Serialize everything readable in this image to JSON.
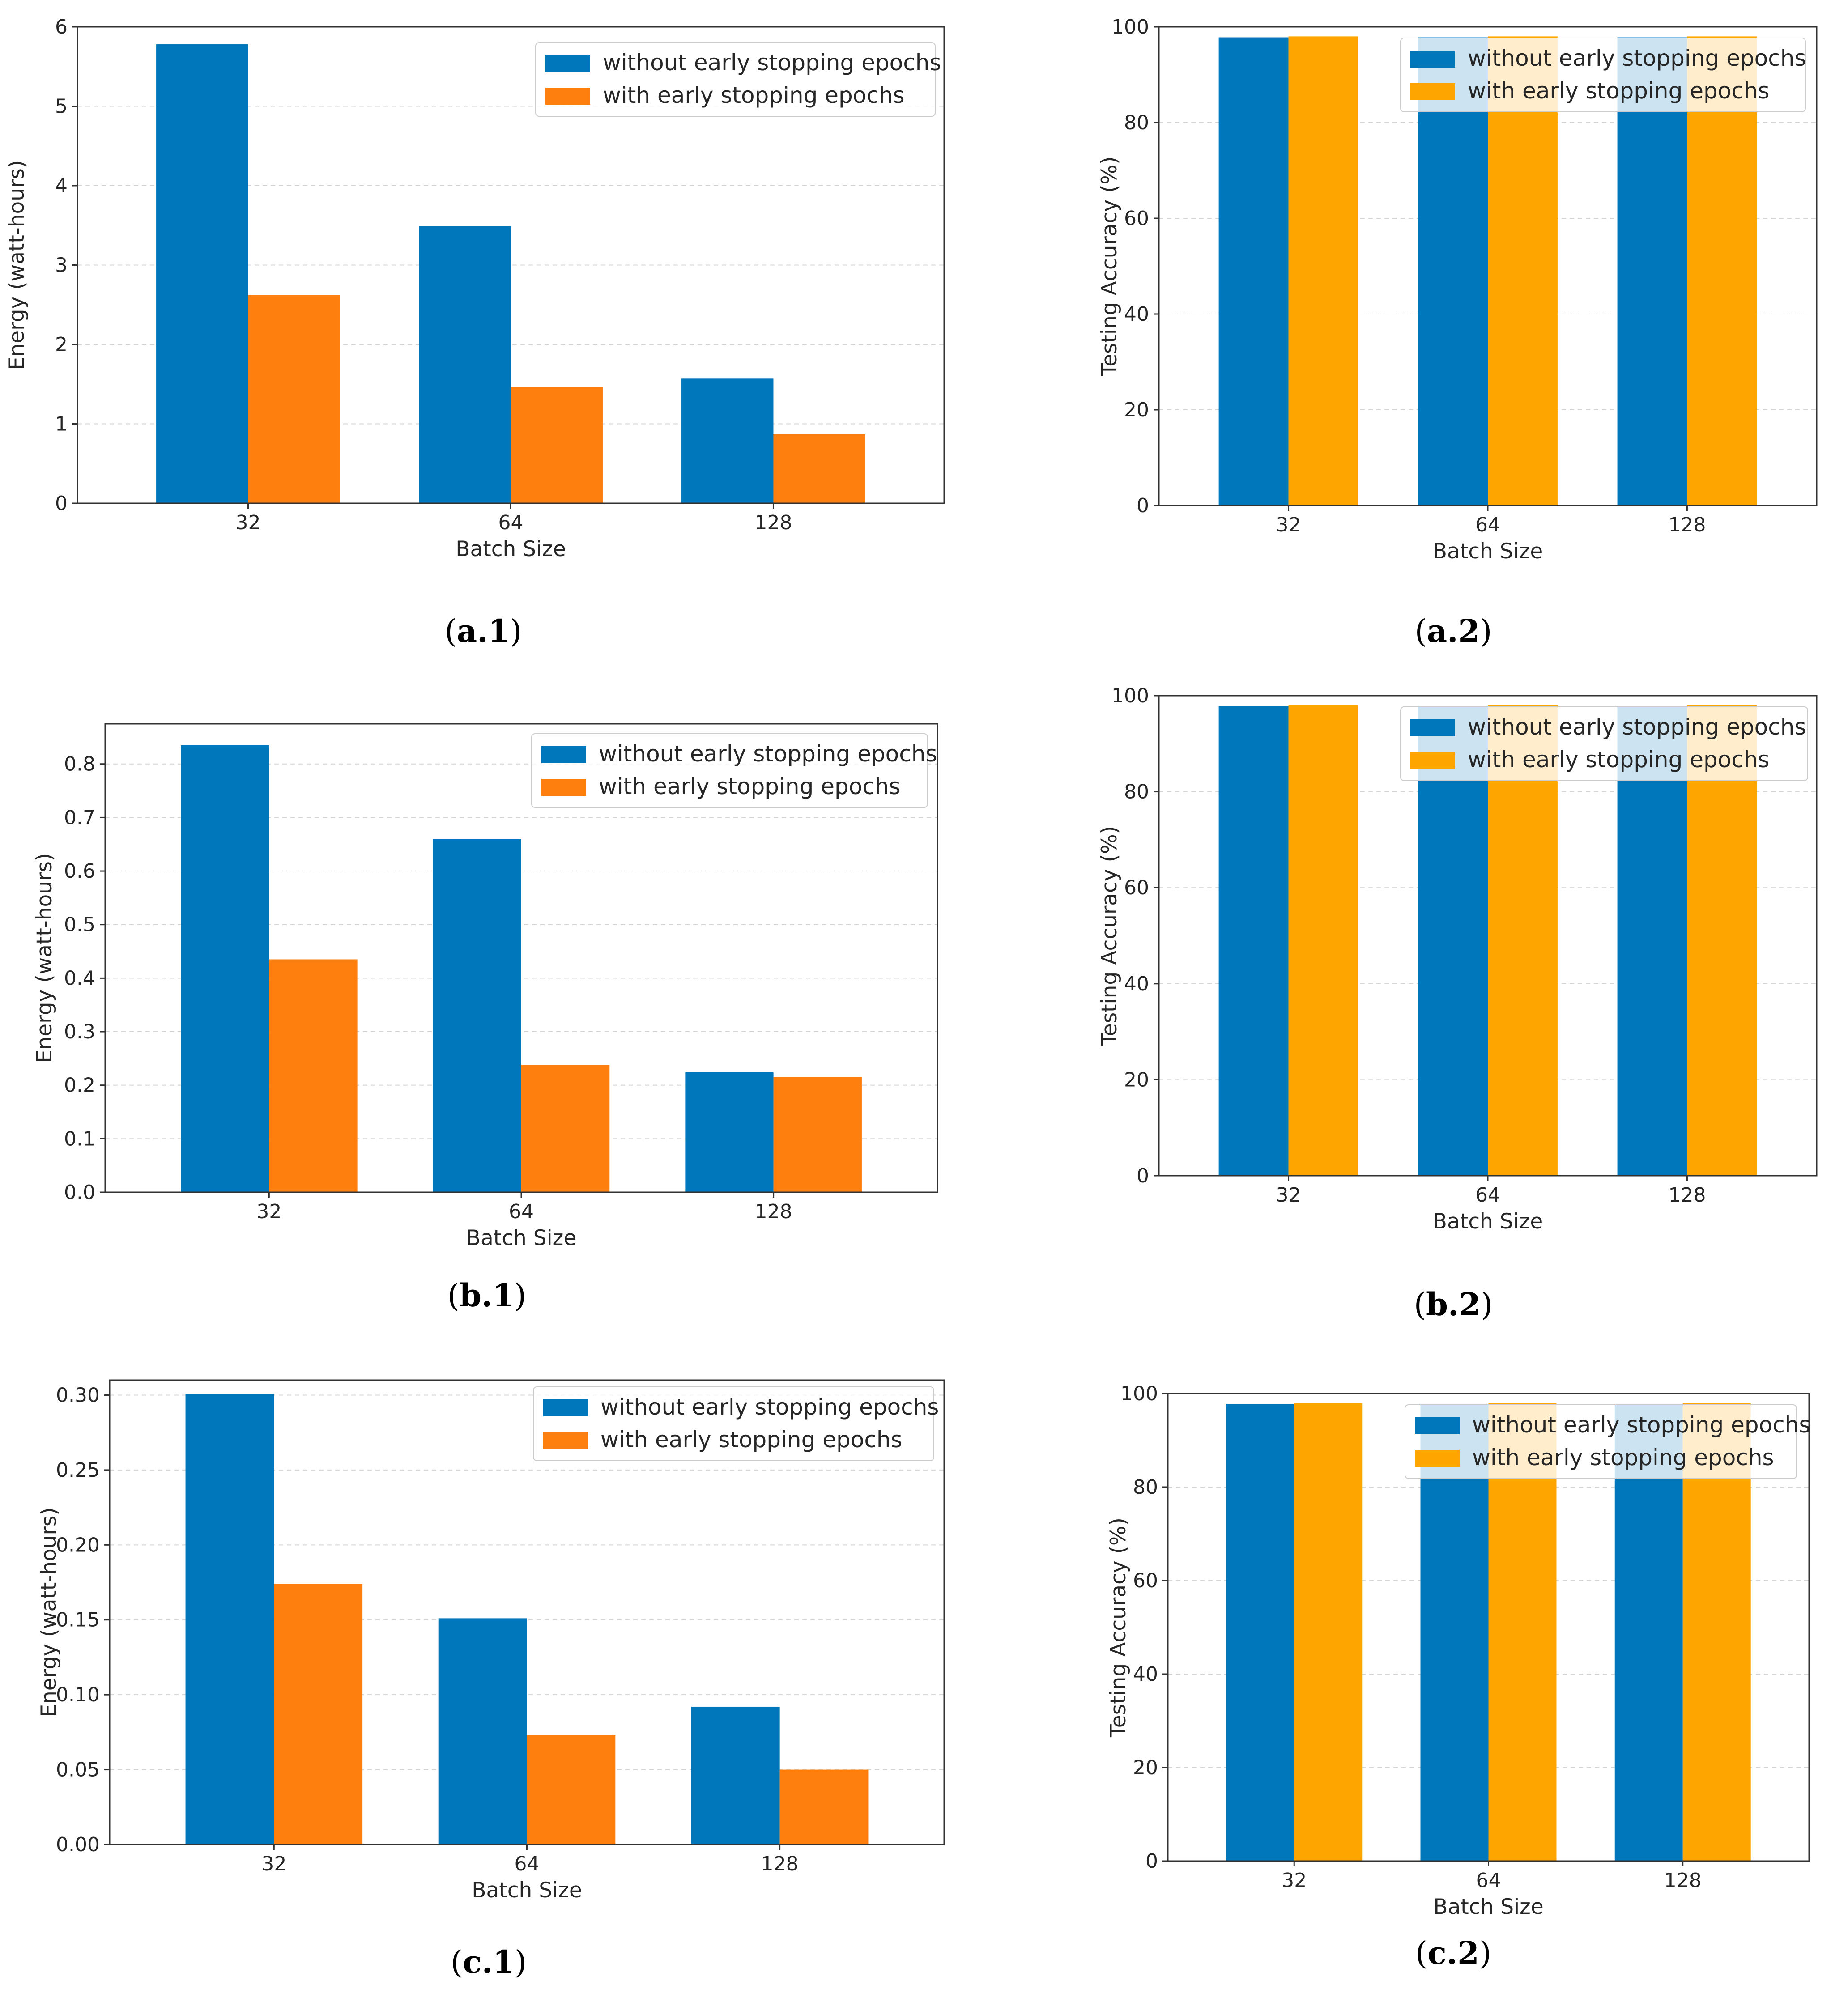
{
  "colors": {
    "without_blue": "#0077bb",
    "with_orange": "#ff7f0e",
    "with_amber": "#ffa500",
    "axis": "#333333",
    "grid": "#d4d4d4",
    "legend_border": "#cccccc"
  },
  "chart_data": [
    {
      "id": "a1",
      "type": "bar",
      "caption": {
        "open": "(",
        "letters": "a.1",
        "close": ")"
      },
      "categories": [
        "32",
        "64",
        "128"
      ],
      "series": [
        {
          "name": "without early stopping epochs",
          "values": [
            5.78,
            3.49,
            1.57
          ]
        },
        {
          "name": "with early stopping epochs",
          "values": [
            2.62,
            1.47,
            0.87
          ]
        }
      ],
      "xlabel": "Batch Size",
      "ylabel": "Energy (watt-hours)",
      "ylim": [
        0,
        6
      ],
      "yticks": [
        "0",
        "1",
        "2",
        "3",
        "4",
        "5",
        "6"
      ],
      "legend_loc": "upper right",
      "grid": "y dashed"
    },
    {
      "id": "a2",
      "type": "bar",
      "caption": {
        "open": "(",
        "letters": "a.2",
        "close": ")"
      },
      "categories": [
        "32",
        "64",
        "128"
      ],
      "series": [
        {
          "name": "without early stopping epochs",
          "values": [
            97.8,
            97.8,
            97.8
          ]
        },
        {
          "name": "with early stopping epochs",
          "values": [
            98.0,
            98.0,
            98.0
          ]
        }
      ],
      "xlabel": "Batch Size",
      "ylabel": "Testing Accuracy (%)",
      "ylim": [
        0,
        100
      ],
      "yticks": [
        "0",
        "20",
        "40",
        "60",
        "80",
        "100"
      ],
      "legend_loc": "upper right",
      "grid": "y dashed"
    },
    {
      "id": "b1",
      "type": "bar",
      "caption": {
        "open": "(",
        "letters": "b.1",
        "close": ")"
      },
      "categories": [
        "32",
        "64",
        "128"
      ],
      "series": [
        {
          "name": "without early stopping epochs",
          "values": [
            0.835,
            0.66,
            0.224
          ]
        },
        {
          "name": "with early stopping epochs",
          "values": [
            0.435,
            0.238,
            0.215
          ]
        }
      ],
      "xlabel": "Batch Size",
      "ylabel": "Energy (watt-hours)",
      "ylim": [
        0,
        0.875
      ],
      "yticks": [
        "0.0",
        "0.1",
        "0.2",
        "0.3",
        "0.4",
        "0.5",
        "0.6",
        "0.7",
        "0.8"
      ],
      "legend_loc": "upper right",
      "grid": "y dashed"
    },
    {
      "id": "b2",
      "type": "bar",
      "caption": {
        "open": "(",
        "letters": "b.2",
        "close": ")"
      },
      "categories": [
        "32",
        "64",
        "128"
      ],
      "series": [
        {
          "name": "without early stopping epochs",
          "values": [
            97.8,
            97.8,
            97.8
          ]
        },
        {
          "name": "with early stopping epochs",
          "values": [
            98.0,
            98.0,
            98.0
          ]
        }
      ],
      "xlabel": "Batch Size",
      "ylabel": "Testing Accuracy (%)",
      "ylim": [
        0,
        100
      ],
      "yticks": [
        "0",
        "20",
        "40",
        "60",
        "80",
        "100"
      ],
      "legend_loc": "upper right",
      "grid": "y dashed"
    },
    {
      "id": "c1",
      "type": "bar",
      "caption": {
        "open": "(",
        "letters": "c.1",
        "close": ")"
      },
      "categories": [
        "32",
        "64",
        "128"
      ],
      "series": [
        {
          "name": "without early stopping epochs",
          "values": [
            0.301,
            0.151,
            0.092
          ]
        },
        {
          "name": "with early stopping epochs",
          "values": [
            0.174,
            0.073,
            0.05
          ]
        }
      ],
      "xlabel": "Batch Size",
      "ylabel": "Energy (watt-hours)",
      "ylim": [
        0,
        0.31
      ],
      "yticks": [
        "0.00",
        "0.05",
        "0.10",
        "0.15",
        "0.20",
        "0.25",
        "0.30"
      ],
      "legend_loc": "upper right",
      "grid": "y dashed"
    },
    {
      "id": "c2",
      "type": "bar",
      "caption": {
        "open": "(",
        "letters": "c.2",
        "close": ")"
      },
      "categories": [
        "32",
        "64",
        "128"
      ],
      "series": [
        {
          "name": "without early stopping epochs",
          "values": [
            97.8,
            97.8,
            97.8
          ]
        },
        {
          "name": "with early stopping epochs",
          "values": [
            97.9,
            97.9,
            97.9
          ]
        }
      ],
      "xlabel": "Batch Size",
      "ylabel": "Testing Accuracy (%)",
      "ylim": [
        0,
        100
      ],
      "yticks": [
        "0",
        "20",
        "40",
        "60",
        "80",
        "100"
      ],
      "legend_loc": "upper right",
      "grid": "y dashed"
    }
  ]
}
